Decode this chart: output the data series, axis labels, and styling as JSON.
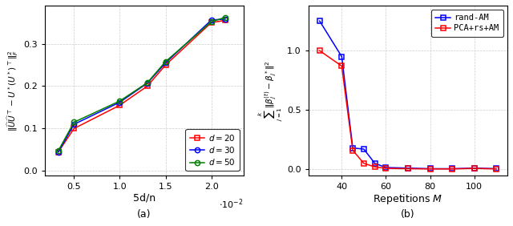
{
  "plot_a": {
    "xlabel": "5d/n",
    "xdata": [
      0.33,
      0.5,
      1.0,
      1.3,
      1.5,
      2.0,
      2.15
    ],
    "d20_y": [
      0.045,
      0.1,
      0.155,
      0.2,
      0.25,
      0.35,
      0.355
    ],
    "d30_y": [
      0.045,
      0.11,
      0.162,
      0.207,
      0.255,
      0.356,
      0.358
    ],
    "d50_y": [
      0.048,
      0.115,
      0.165,
      0.208,
      0.258,
      0.352,
      0.362
    ],
    "color_d20": "red",
    "color_d30": "blue",
    "color_d50": "green",
    "marker_d20": "s",
    "marker_d30": "o",
    "marker_d50": "o",
    "label_d20": "$d = 20$",
    "label_d30": "$d = 30$",
    "label_d50": "$d = 50$",
    "xlim": [
      0.18,
      2.35
    ],
    "ylim": [
      -0.01,
      0.39
    ],
    "yticks": [
      0.0,
      0.1,
      0.2,
      0.3
    ],
    "xticks": [
      0.5,
      1.0,
      1.5,
      2.0
    ],
    "caption": "(a)"
  },
  "plot_b": {
    "xlabel": "Repetitions $M$",
    "rand_x": [
      30,
      40,
      45,
      50,
      55,
      60,
      70,
      80,
      90,
      100,
      110
    ],
    "rand_y": [
      1.25,
      0.95,
      0.18,
      0.17,
      0.05,
      0.015,
      0.01,
      0.005,
      0.005,
      0.01,
      0.005
    ],
    "pca_x": [
      30,
      40,
      45,
      50,
      55,
      60,
      70,
      80,
      90,
      100,
      110
    ],
    "pca_y": [
      1.0,
      0.87,
      0.16,
      0.05,
      0.02,
      0.008,
      0.005,
      0.003,
      0.003,
      0.008,
      0.003
    ],
    "color_rand": "blue",
    "color_pca": "red",
    "marker_rand": "s",
    "marker_pca": "s",
    "label_rand": "rand-AM",
    "label_pca": "PCA+rs+AM",
    "xlim": [
      25,
      115
    ],
    "ylim": [
      -0.05,
      1.38
    ],
    "xticks": [
      40,
      60,
      80,
      100
    ],
    "yticks": [
      0.0,
      0.5,
      1.0
    ],
    "caption": "(b)"
  }
}
